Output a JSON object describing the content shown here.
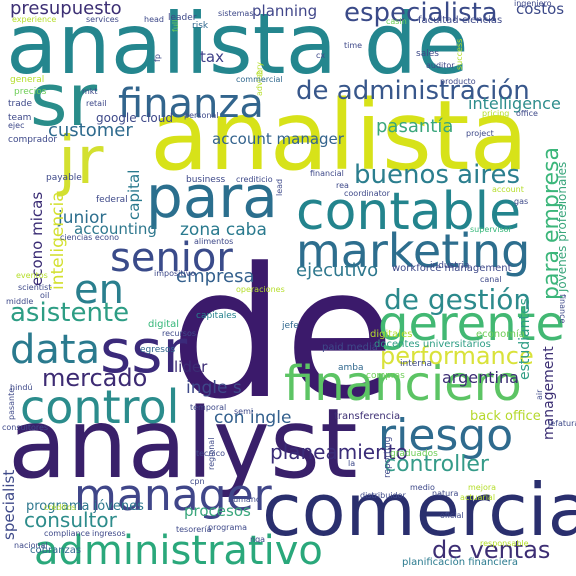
{
  "title": "",
  "palette": {
    "background": "#ffffff",
    "colors": [
      "#440154",
      "#482878",
      "#3e4989",
      "#31688e",
      "#26828e",
      "#1f9e89",
      "#35b779",
      "#6ece58",
      "#b5de2b",
      "#fde725"
    ]
  },
  "words": [
    {
      "text": "de",
      "color": "#3b1a6b"
    },
    {
      "text": "analista de",
      "color": "#24868e"
    },
    {
      "text": "analista",
      "color": "#d7e219"
    },
    {
      "text": "analyst",
      "color": "#39206a"
    },
    {
      "text": "comercial",
      "color": "#2a2f6e"
    },
    {
      "text": "administrativo",
      "color": "#2aa87b"
    },
    {
      "text": "para",
      "color": "#2b6f8e"
    },
    {
      "text": "contable",
      "color": "#23848d"
    },
    {
      "text": "marketing",
      "color": "#2d6e8e"
    },
    {
      "text": "ssr",
      "color": "#3b2a7a"
    },
    {
      "text": "sr",
      "color": "#2a8d8a"
    },
    {
      "text": "jr",
      "color": "#d3e030"
    },
    {
      "text": "gerente",
      "color": "#42b873"
    },
    {
      "text": "financiero",
      "color": "#5cc464"
    },
    {
      "text": "control",
      "color": "#2b8c8c"
    },
    {
      "text": "riesgo",
      "color": "#2f6b8e"
    },
    {
      "text": "manager",
      "color": "#404689"
    },
    {
      "text": "finanza",
      "color": "#32658d"
    },
    {
      "text": "senior",
      "color": "#3a4b8a"
    },
    {
      "text": "en",
      "color": "#2a7f8e"
    },
    {
      "text": "data",
      "color": "#2a7a8e"
    },
    {
      "text": "asistente",
      "color": "#2d9d84"
    },
    {
      "text": "mercado",
      "color": "#3d2b73"
    },
    {
      "text": "de administración",
      "color": "#38578b"
    },
    {
      "text": "especialista",
      "color": "#3a4a88"
    },
    {
      "text": "presupuesto",
      "color": "#3c2f74"
    },
    {
      "text": "buenos aires",
      "color": "#2b7e8e"
    },
    {
      "text": "de gestión",
      "color": "#2c8a8c"
    },
    {
      "text": "performance",
      "color": "#d9e23a"
    },
    {
      "text": "de ventas",
      "color": "#3d2e74"
    },
    {
      "text": "controller",
      "color": "#359b89"
    },
    {
      "text": "planeamiento",
      "color": "#3a2c78"
    },
    {
      "text": "consultor",
      "color": "#2d8c8b"
    },
    {
      "text": "para empresa",
      "color": "#3bb67a"
    },
    {
      "text": "customer",
      "color": "#2f6b8e"
    },
    {
      "text": "pasantía",
      "color": "#3aa67c"
    },
    {
      "text": "intelligence",
      "color": "#2d8d8c"
    },
    {
      "text": "argentina",
      "color": "#3b2c74"
    },
    {
      "text": "ejecutivo",
      "color": "#2f788e"
    },
    {
      "text": "empresa",
      "color": "#34608d"
    },
    {
      "text": "zona caba",
      "color": "#2a7a8e"
    },
    {
      "text": "account manager",
      "color": "#33638d"
    },
    {
      "text": "junior",
      "color": "#2e6f8e"
    },
    {
      "text": "inteligencia",
      "color": "#d3e030"
    },
    {
      "text": "econo micas",
      "color": "#3a2c74"
    },
    {
      "text": "accounting",
      "color": "#2f788e"
    },
    {
      "text": "capital",
      "color": "#2a7a8e"
    },
    {
      "text": "planning",
      "color": "#404689"
    },
    {
      "text": "costos",
      "color": "#3d4a89"
    },
    {
      "text": "tax",
      "color": "#3e3f87"
    },
    {
      "text": "google cloud",
      "color": "#3e4989"
    },
    {
      "text": "con ingle",
      "color": "#33608d"
    },
    {
      "text": "ingle s",
      "color": "#3e4989"
    },
    {
      "text": "lider",
      "color": "#3b2c74"
    },
    {
      "text": "programa jóvenes",
      "color": "#2f788e"
    },
    {
      "text": "procesos",
      "color": "#3aa67c"
    },
    {
      "text": "back office",
      "color": "#b6d82c"
    },
    {
      "text": "estudiantes",
      "color": "#2d9d84"
    },
    {
      "text": "management",
      "color": "#3c2f74"
    },
    {
      "text": "specialist",
      "color": "#3e4989"
    },
    {
      "text": "jóvenes profesionales",
      "color": "#3aa67c"
    },
    {
      "text": "workforce management",
      "color": "#3e4989"
    },
    {
      "text": "docentes universitarios",
      "color": "#2d9d84"
    },
    {
      "text": "paid media",
      "color": "#3e4989"
    },
    {
      "text": "facultad ciencias",
      "color": "#3e4989"
    },
    {
      "text": "planificación financiera",
      "color": "#2a7a8e"
    },
    {
      "text": "transferencia",
      "color": "#3c2f74"
    },
    {
      "text": "reporting",
      "color": "#3e4989"
    },
    {
      "text": "graduados",
      "color": "#6ece58"
    },
    {
      "text": "economía",
      "color": "#6ece58"
    },
    {
      "text": "digitales",
      "color": "#b5de2b"
    },
    {
      "text": "digital",
      "color": "#35b779"
    },
    {
      "text": "capitales",
      "color": "#26828e"
    },
    {
      "text": "egresos",
      "color": "#31688e"
    },
    {
      "text": "jefe",
      "color": "#31688e"
    },
    {
      "text": "amba",
      "color": "#31688e"
    },
    {
      "text": "compras",
      "color": "#6ece58"
    },
    {
      "text": "interna",
      "color": "#3e4989"
    },
    {
      "text": "industria",
      "color": "#3e4989"
    },
    {
      "text": "business",
      "color": "#3e4989"
    },
    {
      "text": "federal",
      "color": "#3e4989"
    },
    {
      "text": "payable",
      "color": "#3e4989"
    },
    {
      "text": "comprador",
      "color": "#3e4989"
    },
    {
      "text": "team",
      "color": "#3e4989"
    },
    {
      "text": "trade",
      "color": "#3e4989"
    },
    {
      "text": "precios",
      "color": "#6ece58"
    },
    {
      "text": "general",
      "color": "#b5de2b"
    },
    {
      "text": "experience",
      "color": "#b5de2b"
    },
    {
      "text": "services",
      "color": "#3e4989"
    },
    {
      "text": "head",
      "color": "#3e4989"
    },
    {
      "text": "leader",
      "color": "#3e4989"
    },
    {
      "text": "risk",
      "color": "#31688e"
    },
    {
      "text": "full",
      "color": "#6ece58"
    },
    {
      "text": "sistemas",
      "color": "#3e4989"
    },
    {
      "text": "casin",
      "color": "#6ece58"
    },
    {
      "text": "ingeniero",
      "color": "#3e4989"
    },
    {
      "text": "time",
      "color": "#3e4989"
    },
    {
      "text": "sales",
      "color": "#3e4989"
    },
    {
      "text": "auditor",
      "color": "#3e4989"
    },
    {
      "text": "cx",
      "color": "#3e4989"
    },
    {
      "text": "fp",
      "color": "#3e4989"
    },
    {
      "text": "advisory",
      "color": "#b5de2b"
    },
    {
      "text": "commercial",
      "color": "#31688e"
    },
    {
      "text": "el",
      "color": "#b5de2b"
    },
    {
      "text": "producto",
      "color": "#3e4989"
    },
    {
      "text": "success",
      "color": "#b5de2b"
    },
    {
      "text": "pricing",
      "color": "#b5de2b"
    },
    {
      "text": "office",
      "color": "#3e4989"
    },
    {
      "text": "project",
      "color": "#3e4989"
    },
    {
      "text": "retail",
      "color": "#3e4989"
    },
    {
      "text": "personal",
      "color": "#3e4989"
    },
    {
      "text": "financial",
      "color": "#3e4989"
    },
    {
      "text": "crediticio",
      "color": "#3e4989"
    },
    {
      "text": "coordinator",
      "color": "#3e4989"
    },
    {
      "text": "rea",
      "color": "#3e4989"
    },
    {
      "text": "account",
      "color": "#b5de2b"
    },
    {
      "text": "lead",
      "color": "#3e4989"
    },
    {
      "text": "gas",
      "color": "#3e4989"
    },
    {
      "text": "supervisor",
      "color": "#35b779"
    },
    {
      "text": "canal",
      "color": "#3e4989"
    },
    {
      "text": "ciencias econo",
      "color": "#3e4989"
    },
    {
      "text": "alimentos",
      "color": "#3e4989"
    },
    {
      "text": "impositivo",
      "color": "#3e4989"
    },
    {
      "text": "eventos",
      "color": "#b5de2b"
    },
    {
      "text": "scientist",
      "color": "#3e4989"
    },
    {
      "text": "oil",
      "color": "#3e4989"
    },
    {
      "text": "middle",
      "color": "#3e4989"
    },
    {
      "text": "operaciones",
      "color": "#b5de2b"
    },
    {
      "text": "recursos",
      "color": "#3e4989"
    },
    {
      "text": "finance",
      "color": "#3e4989"
    },
    {
      "text": "hindú",
      "color": "#3e4989"
    },
    {
      "text": "pasante",
      "color": "#3e4989"
    },
    {
      "text": "consultores",
      "color": "#3e4989"
    },
    {
      "text": "temporal",
      "color": "#3e4989"
    },
    {
      "text": "semi",
      "color": "#3e4989"
    },
    {
      "text": "tecnico",
      "color": "#3e4989"
    },
    {
      "text": "regional",
      "color": "#3e4989"
    },
    {
      "text": "cpn",
      "color": "#3e4989"
    },
    {
      "text": "humano",
      "color": "#3e4989"
    },
    {
      "text": "medio",
      "color": "#3e4989"
    },
    {
      "text": "la",
      "color": "#3e4989"
    },
    {
      "text": "natura",
      "color": "#3e4989"
    },
    {
      "text": "mejora",
      "color": "#b5de2b"
    },
    {
      "text": "actuarial",
      "color": "#b5de2b"
    },
    {
      "text": "air",
      "color": "#3e4989"
    },
    {
      "text": "jefatura",
      "color": "#3e4989"
    },
    {
      "text": "distribuidor",
      "color": "#3e4989"
    },
    {
      "text": "oficial",
      "color": "#3e4989"
    },
    {
      "text": "ingresos",
      "color": "#3e4989"
    },
    {
      "text": "compliance",
      "color": "#3e4989"
    },
    {
      "text": "nacional",
      "color": "#3e4989"
    },
    {
      "text": "cobranzas",
      "color": "#31688e"
    },
    {
      "text": "tesorería",
      "color": "#3e4989"
    },
    {
      "text": "programa",
      "color": "#3e4989"
    },
    {
      "text": "créditos",
      "color": "#b5de2b"
    },
    {
      "text": "responsable",
      "color": "#b5de2b"
    },
    {
      "text": "ejec",
      "color": "#3e4989"
    },
    {
      "text": "mkt",
      "color": "#3e4989"
    },
    {
      "text": "nqa",
      "color": "#3e4989"
    }
  ]
}
